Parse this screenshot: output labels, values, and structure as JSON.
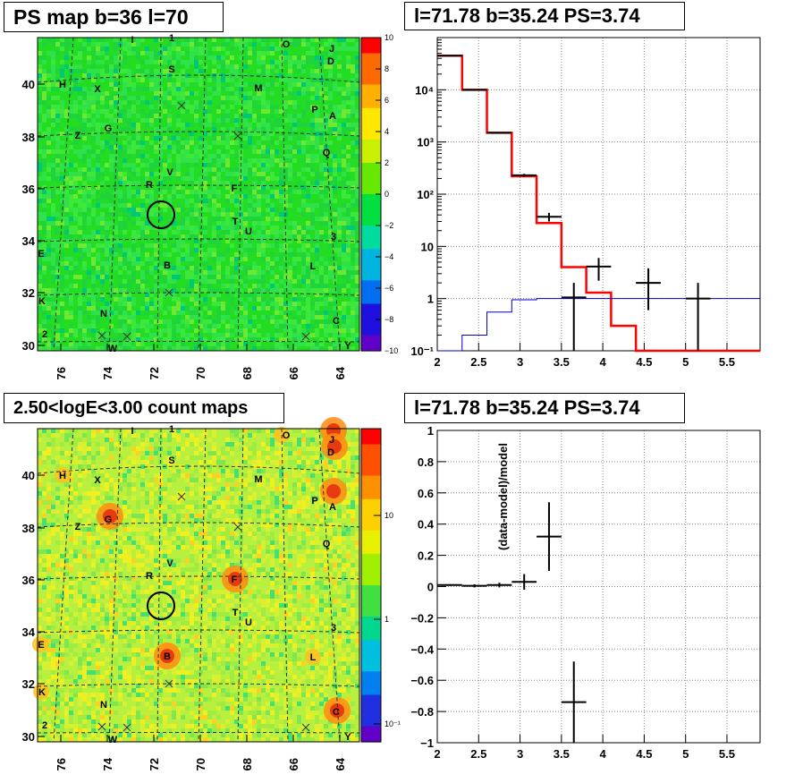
{
  "panels": {
    "ps_map": {
      "title": "PS map b=36 l=70",
      "xticks": [
        "76",
        "74",
        "72",
        "70",
        "68",
        "66",
        "64"
      ],
      "yticks": [
        "40",
        "38",
        "36",
        "34",
        "32",
        "30"
      ],
      "colorbar_ticks": [
        "10",
        "8",
        "6",
        "4",
        "2",
        "0",
        "−2",
        "−4",
        "−6",
        "−8",
        "−10"
      ],
      "colormap": "rainbow",
      "background_color": "#22dd22"
    },
    "count_map": {
      "title": "2.50<logE<3.00 count maps",
      "xticks": [
        "76",
        "74",
        "72",
        "70",
        "68",
        "66",
        "64"
      ],
      "yticks": [
        "40",
        "38",
        "36",
        "34",
        "32",
        "30"
      ],
      "colorbar_ticks": [
        "10",
        "1",
        "10⁻¹"
      ],
      "colormap": "rainbow-log",
      "background_color": "#b8f040"
    },
    "spectrum": {
      "title": "l=71.78 b=35.24 PS=3.74"
    },
    "residual": {
      "title": "l=71.78 b=35.24 PS=3.74"
    }
  },
  "source_labels": [
    {
      "text": "I"
    },
    {
      "text": "1"
    },
    {
      "text": "O"
    },
    {
      "text": "J"
    },
    {
      "text": "D"
    },
    {
      "text": "S"
    },
    {
      "text": "H"
    },
    {
      "text": "X"
    },
    {
      "text": "M"
    },
    {
      "text": "P"
    },
    {
      "text": "A"
    },
    {
      "text": "G"
    },
    {
      "text": "Z"
    },
    {
      "text": "Q"
    },
    {
      "text": "V"
    },
    {
      "text": "R"
    },
    {
      "text": "F"
    },
    {
      "text": "T"
    },
    {
      "text": "U"
    },
    {
      "text": "3"
    },
    {
      "text": "E"
    },
    {
      "text": "L"
    },
    {
      "text": "B"
    },
    {
      "text": "K"
    },
    {
      "text": "N"
    },
    {
      "text": "C"
    },
    {
      "text": "2"
    },
    {
      "text": "W"
    },
    {
      "text": "Y"
    }
  ],
  "chart_data": [
    {
      "type": "line",
      "title": "l=71.78 b=35.24 PS=3.74",
      "xlabel": "",
      "ylabel": "",
      "xlim": [
        2,
        5.9
      ],
      "ylim": [
        0.1,
        100000
      ],
      "y_scale": "log",
      "x_ticks": [
        "2",
        "2.5",
        "3",
        "3.5",
        "4",
        "4.5",
        "5",
        "5.5"
      ],
      "y_ticks": [
        "10⁻¹",
        "1",
        "10",
        "10²",
        "10³",
        "10⁴"
      ],
      "grid": true,
      "series": [
        {
          "color": "#ff0000",
          "style": "step",
          "edges": [
            2.0,
            2.3,
            2.6,
            2.9,
            3.2,
            3.5,
            3.8,
            4.1,
            4.4,
            5.9
          ],
          "values": [
            45000,
            10000,
            1500,
            220,
            28,
            4,
            1.3,
            0.3,
            0.1
          ]
        },
        {
          "color": "#0000cc",
          "style": "step",
          "edges": [
            2.0,
            2.3,
            2.6,
            2.9,
            3.2,
            3.5,
            3.8,
            4.1,
            4.4,
            5.9
          ],
          "values": [
            0.1,
            0.2,
            0.55,
            0.95,
            1.0,
            1.0,
            1.0,
            1.0,
            1.0
          ]
        },
        {
          "color": "#000000",
          "style": "errorbar",
          "points": [
            {
              "x": 2.15,
              "y": 45000,
              "xerr": 0.15,
              "ylo": 44000,
              "yhi": 46000
            },
            {
              "x": 2.45,
              "y": 10000,
              "xerr": 0.15,
              "ylo": 9800,
              "yhi": 10200
            },
            {
              "x": 2.75,
              "y": 1500,
              "xerr": 0.15,
              "ylo": 1450,
              "yhi": 1550
            },
            {
              "x": 3.05,
              "y": 230,
              "xerr": 0.15,
              "ylo": 215,
              "yhi": 245
            },
            {
              "x": 3.35,
              "y": 37,
              "xerr": 0.15,
              "ylo": 30,
              "yhi": 44
            },
            {
              "x": 3.65,
              "y": 1.05,
              "xerr": 0.15,
              "ylo": 0.1,
              "yhi": 2.0
            },
            {
              "x": 3.95,
              "y": 4.1,
              "xerr": 0.15,
              "ylo": 2.2,
              "yhi": 6.0
            },
            {
              "x": 4.55,
              "y": 2.0,
              "xerr": 0.15,
              "ylo": 0.6,
              "yhi": 3.8
            },
            {
              "x": 5.15,
              "y": 1.0,
              "xerr": 0.15,
              "ylo": 0.1,
              "yhi": 2.0
            }
          ]
        }
      ]
    },
    {
      "type": "scatter",
      "title": "l=71.78 b=35.24 PS=3.74",
      "xlabel": "",
      "ylabel": "(data-model)/model",
      "xlim": [
        2,
        5.9
      ],
      "ylim": [
        -1,
        1
      ],
      "x_ticks": [
        "2",
        "2.5",
        "3",
        "3.5",
        "4",
        "4.5",
        "5",
        "5.5"
      ],
      "y_ticks": [
        "−1",
        "−0.8",
        "−0.6",
        "−0.4",
        "−0.2",
        "0",
        "0.2",
        "0.4",
        "0.6",
        "0.8",
        "1"
      ],
      "grid": true,
      "points": [
        {
          "x": 2.15,
          "y": 0.01,
          "xerr": 0.15,
          "yerr": 0.005
        },
        {
          "x": 2.45,
          "y": 0.005,
          "xerr": 0.15,
          "yerr": 0.01
        },
        {
          "x": 2.75,
          "y": 0.01,
          "xerr": 0.15,
          "yerr": 0.015
        },
        {
          "x": 3.05,
          "y": 0.03,
          "xerr": 0.15,
          "yerr": 0.05
        },
        {
          "x": 3.35,
          "y": 0.32,
          "xerr": 0.15,
          "yerr": 0.22
        },
        {
          "x": 3.65,
          "y": -0.74,
          "xerr": 0.15,
          "yerr": 0.26
        }
      ]
    }
  ]
}
